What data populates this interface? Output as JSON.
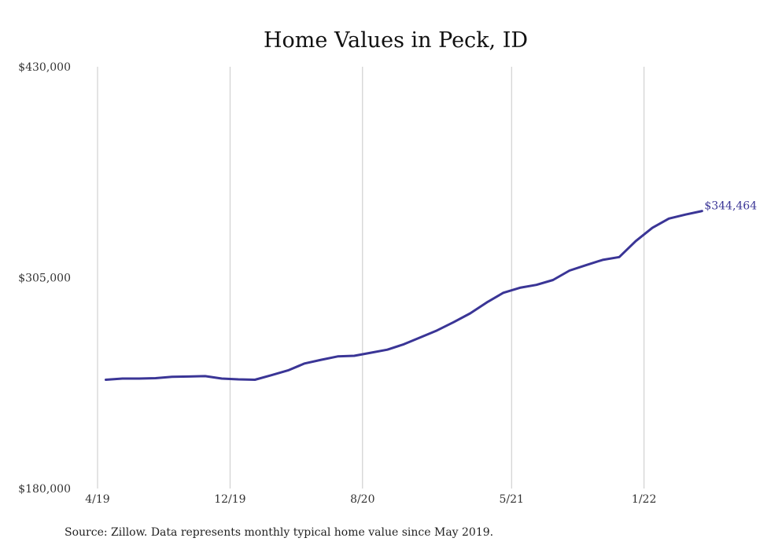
{
  "chart_data": {
    "type": "line",
    "title": "Home Values in Peck, ID",
    "xlabel": "",
    "ylabel": "",
    "ylim": [
      180000,
      430000
    ],
    "yticks": [
      {
        "value": 180000,
        "label": "$180,000"
      },
      {
        "value": 305000,
        "label": "$305,000"
      },
      {
        "value": 430000,
        "label": "$430,000"
      }
    ],
    "xticks": [
      {
        "month": 0,
        "label": "4/19"
      },
      {
        "month": 8,
        "label": "12/19"
      },
      {
        "month": 16,
        "label": "8/20"
      },
      {
        "month": 25,
        "label": "5/21"
      },
      {
        "month": 33,
        "label": "1/22"
      }
    ],
    "grid": {
      "vertical": true,
      "horizontal": false
    },
    "series": [
      {
        "name": "",
        "color": "#3a3596",
        "points": [
          {
            "month": 0.5,
            "value": 244500
          },
          {
            "month": 1.5,
            "value": 245200
          },
          {
            "month": 2.5,
            "value": 245200
          },
          {
            "month": 3.5,
            "value": 245400
          },
          {
            "month": 4.5,
            "value": 246200
          },
          {
            "month": 5.5,
            "value": 246400
          },
          {
            "month": 6.5,
            "value": 246600
          },
          {
            "month": 7.5,
            "value": 245200
          },
          {
            "month": 8.5,
            "value": 244700
          },
          {
            "month": 9.5,
            "value": 244500
          },
          {
            "month": 10.5,
            "value": 247200
          },
          {
            "month": 11.5,
            "value": 250000
          },
          {
            "month": 12.5,
            "value": 254100
          },
          {
            "month": 13.5,
            "value": 256300
          },
          {
            "month": 14.5,
            "value": 258300
          },
          {
            "month": 15.5,
            "value": 258700
          },
          {
            "month": 16.5,
            "value": 260500
          },
          {
            "month": 17.5,
            "value": 262300
          },
          {
            "month": 18.5,
            "value": 265500
          },
          {
            "month": 19.5,
            "value": 269600
          },
          {
            "month": 20.5,
            "value": 273700
          },
          {
            "month": 21.5,
            "value": 278600
          },
          {
            "month": 22.5,
            "value": 283800
          },
          {
            "month": 23.5,
            "value": 290300
          },
          {
            "month": 24.5,
            "value": 296000
          },
          {
            "month": 25.5,
            "value": 299000
          },
          {
            "month": 26.5,
            "value": 300700
          },
          {
            "month": 27.5,
            "value": 303600
          },
          {
            "month": 28.5,
            "value": 309200
          },
          {
            "month": 29.5,
            "value": 312400
          },
          {
            "month": 30.5,
            "value": 315500
          },
          {
            "month": 31.5,
            "value": 317200
          },
          {
            "month": 32.5,
            "value": 326700
          },
          {
            "month": 33.5,
            "value": 334500
          },
          {
            "month": 34.5,
            "value": 340000
          },
          {
            "month": 35.5,
            "value": 342400
          },
          {
            "month": 36.5,
            "value": 344464
          }
        ]
      }
    ],
    "end_label": "$344,464",
    "source_note": "Source: Zillow. Data represents monthly typical home value since May 2019."
  }
}
